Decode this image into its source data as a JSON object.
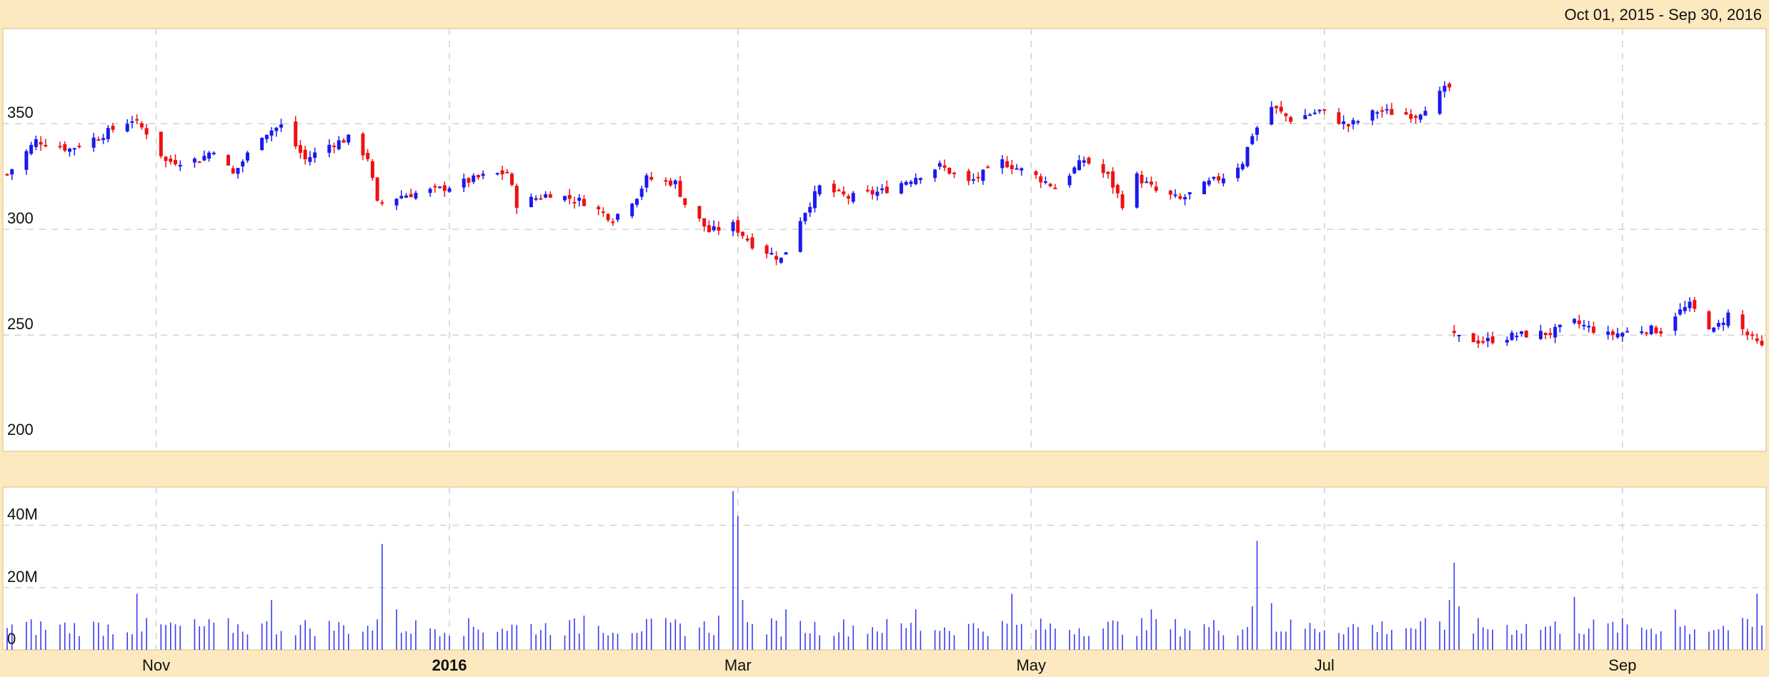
{
  "header": {
    "date_range": "Oct 01, 2015 - Sep 30, 2016"
  },
  "colors": {
    "background": "#fde9bf",
    "panel": "#ffffff",
    "up_candle": "#1a1aee",
    "down_candle": "#ee1111",
    "volume_bar": "#3a3af0",
    "grid": "#cfcfcf"
  },
  "chart_data": [
    {
      "type": "candlestick",
      "title": "",
      "x_axis": {
        "type": "date",
        "range": [
          "2015-10-01",
          "2016-09-30"
        ],
        "ticks": [
          {
            "date": "2015-11-01",
            "label": "Nov",
            "bold": false
          },
          {
            "date": "2016-01-01",
            "label": "2016",
            "bold": true
          },
          {
            "date": "2016-03-01",
            "label": "Mar",
            "bold": false
          },
          {
            "date": "2016-05-01",
            "label": "May",
            "bold": false
          },
          {
            "date": "2016-07-01",
            "label": "Jul",
            "bold": false
          },
          {
            "date": "2016-09-01",
            "label": "Sep",
            "bold": false
          }
        ]
      },
      "y_axis": {
        "min": 195,
        "max": 395,
        "ticks": [
          200,
          250,
          300,
          350
        ],
        "tick_labels": [
          "200",
          "250",
          "300",
          "350"
        ]
      },
      "grid": true,
      "anchors": [
        [
          "2015-10-01",
          326
        ],
        [
          "2015-10-07",
          342
        ],
        [
          "2015-10-14",
          338
        ],
        [
          "2015-10-21",
          345
        ],
        [
          "2015-10-27",
          352
        ],
        [
          "2015-10-30",
          346
        ],
        [
          "2015-11-03",
          332
        ],
        [
          "2015-11-10",
          333
        ],
        [
          "2015-11-13",
          338
        ],
        [
          "2015-11-17",
          326
        ],
        [
          "2015-11-23",
          345
        ],
        [
          "2015-11-27",
          349
        ],
        [
          "2015-12-02",
          333
        ],
        [
          "2015-12-07",
          340
        ],
        [
          "2015-12-11",
          343
        ],
        [
          "2015-12-15",
          334
        ],
        [
          "2015-12-17",
          312
        ],
        [
          "2015-12-22",
          316
        ],
        [
          "2015-12-30",
          319
        ],
        [
          "2016-01-08",
          325
        ],
        [
          "2016-01-13",
          327
        ],
        [
          "2016-01-15",
          312
        ],
        [
          "2016-01-22",
          317
        ],
        [
          "2016-01-29",
          313
        ],
        [
          "2016-02-04",
          305
        ],
        [
          "2016-02-09",
          316
        ],
        [
          "2016-02-11",
          324
        ],
        [
          "2016-02-17",
          322
        ],
        [
          "2016-02-19",
          312
        ],
        [
          "2016-02-24",
          299
        ],
        [
          "2016-02-29",
          302
        ],
        [
          "2016-03-04",
          293
        ],
        [
          "2016-03-10",
          286
        ],
        [
          "2016-03-11",
          290
        ],
        [
          "2016-03-14",
          305
        ],
        [
          "2016-03-18",
          320
        ],
        [
          "2016-03-24",
          315
        ],
        [
          "2016-03-31",
          318
        ],
        [
          "2016-04-06",
          324
        ],
        [
          "2016-04-12",
          330
        ],
        [
          "2016-04-18",
          322
        ],
        [
          "2016-04-25",
          332
        ],
        [
          "2016-05-02",
          325
        ],
        [
          "2016-05-06",
          320
        ],
        [
          "2016-05-12",
          333
        ],
        [
          "2016-05-17",
          325
        ],
        [
          "2016-05-20",
          312
        ],
        [
          "2016-05-23",
          325
        ],
        [
          "2016-05-27",
          318
        ],
        [
          "2016-06-01",
          314
        ],
        [
          "2016-06-07",
          322
        ],
        [
          "2016-06-10",
          325
        ],
        [
          "2016-06-14",
          332
        ],
        [
          "2016-06-16",
          345
        ],
        [
          "2016-06-20",
          358
        ],
        [
          "2016-06-24",
          352
        ],
        [
          "2016-06-30",
          356
        ],
        [
          "2016-07-06",
          349
        ],
        [
          "2016-07-12",
          356
        ],
        [
          "2016-07-20",
          354
        ],
        [
          "2016-07-26",
          366
        ],
        [
          "2016-07-27",
          367
        ],
        [
          "2016-07-28",
          249
        ],
        [
          "2016-08-03",
          247
        ],
        [
          "2016-08-10",
          250
        ],
        [
          "2016-08-17",
          251
        ],
        [
          "2016-08-22",
          256
        ],
        [
          "2016-08-29",
          250
        ],
        [
          "2016-09-06",
          253
        ],
        [
          "2016-09-09",
          252
        ],
        [
          "2016-09-12",
          260
        ],
        [
          "2016-09-15",
          264
        ],
        [
          "2016-09-20",
          252
        ],
        [
          "2016-09-23",
          260
        ],
        [
          "2016-09-27",
          250
        ],
        [
          "2016-09-30",
          244
        ]
      ]
    },
    {
      "type": "bar",
      "title": "",
      "y_axis": {
        "min": 0,
        "max": 50000000,
        "ticks": [
          0,
          20000000,
          40000000
        ],
        "tick_labels": [
          "0",
          "20M",
          "40M"
        ]
      },
      "spikes": [
        [
          "2015-10-28",
          18
        ],
        [
          "2015-11-25",
          16
        ],
        [
          "2015-12-18",
          34
        ],
        [
          "2015-12-21",
          13
        ],
        [
          "2016-01-29",
          11
        ],
        [
          "2016-02-26",
          11
        ],
        [
          "2016-02-29",
          51
        ],
        [
          "2016-03-01",
          43
        ],
        [
          "2016-03-02",
          16
        ],
        [
          "2016-03-11",
          13
        ],
        [
          "2016-04-07",
          13
        ],
        [
          "2016-04-27",
          18
        ],
        [
          "2016-05-26",
          13
        ],
        [
          "2016-06-16",
          14
        ],
        [
          "2016-06-17",
          35
        ],
        [
          "2016-06-20",
          15
        ],
        [
          "2016-07-27",
          16
        ],
        [
          "2016-07-28",
          28
        ],
        [
          "2016-07-29",
          14
        ],
        [
          "2016-08-22",
          17
        ],
        [
          "2016-09-12",
          13
        ],
        [
          "2016-09-29",
          18
        ]
      ],
      "base_volume_m": 7
    }
  ]
}
